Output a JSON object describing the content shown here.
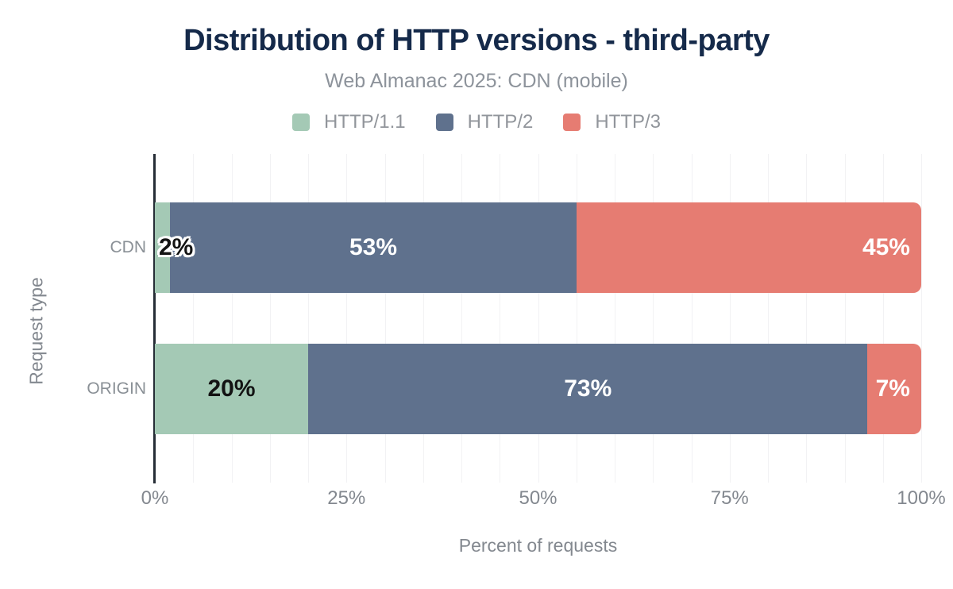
{
  "header": {
    "title": "Distribution of HTTP versions - third-party",
    "subtitle": "Web Almanac 2025: CDN (mobile)"
  },
  "axes": {
    "x_title": "Percent of requests",
    "y_title": "Request type"
  },
  "colors": {
    "title_text": "#152a4a",
    "muted_text": "#8d939b",
    "tick_text": "#83888f",
    "axis_line": "#262d36",
    "gridline": "#f2f2f4",
    "label_light": "#ffffff",
    "label_dark": "#131313",
    "http11": "#a4c9b5",
    "http2": "#5f718d",
    "http3": "#e67c72"
  },
  "chart_data": {
    "type": "bar",
    "orientation": "horizontal",
    "stacked": true,
    "title": "Distribution of HTTP versions - third-party",
    "subtitle": "Web Almanac 2025: CDN (mobile)",
    "xlabel": "Percent of requests",
    "ylabel": "Request type",
    "xlim": [
      0,
      100
    ],
    "grid": true,
    "gridline_step_percent": 5,
    "legend_position": "top",
    "categories": [
      "CDN",
      "ORIGIN"
    ],
    "series": [
      {
        "name": "HTTP/1.1",
        "color": "#a4c9b5",
        "values": [
          2,
          20
        ]
      },
      {
        "name": "HTTP/2",
        "color": "#5f718d",
        "values": [
          53,
          73
        ]
      },
      {
        "name": "HTTP/3",
        "color": "#e67c72",
        "values": [
          45,
          7
        ]
      }
    ],
    "x_ticks": [
      {
        "label": "0%",
        "value": 0
      },
      {
        "label": "25%",
        "value": 25
      },
      {
        "label": "50%",
        "value": 50
      },
      {
        "label": "75%",
        "value": 75
      },
      {
        "label": "100%",
        "value": 100
      }
    ],
    "value_labels": [
      {
        "category": "CDN",
        "labels": [
          {
            "text": "2%",
            "tone": "dark",
            "halo": true,
            "align": "start"
          },
          {
            "text": "53%",
            "tone": "light",
            "halo": false,
            "align": "center"
          },
          {
            "text": "45%",
            "tone": "light",
            "halo": false,
            "align": "end"
          }
        ]
      },
      {
        "category": "ORIGIN",
        "labels": [
          {
            "text": "20%",
            "tone": "dark",
            "halo": false,
            "align": "center"
          },
          {
            "text": "73%",
            "tone": "light",
            "halo": false,
            "align": "center"
          },
          {
            "text": "7%",
            "tone": "light",
            "halo": false,
            "align": "end"
          }
        ]
      }
    ]
  }
}
